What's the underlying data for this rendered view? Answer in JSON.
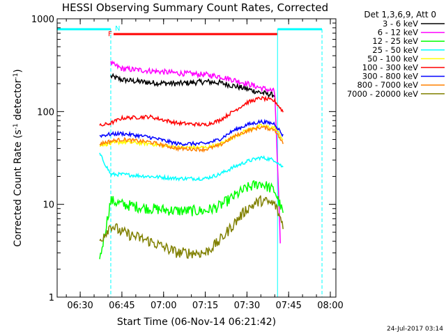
{
  "chart_data": {
    "type": "line",
    "title": "HESSI Observing Summary Count Rates, Corrected",
    "xlabel": "Start Time (06-Nov-14 06:21:42)",
    "ylabel_main": "Corrected Count Rate (s",
    "ylabel_sup1": "-1",
    "ylabel_mid": " detector",
    "ylabel_sup2": "-1",
    "ylabel_end": ")",
    "y_log": true,
    "ylim": [
      1,
      1000
    ],
    "xlim_minutes_after_0600": [
      21.7,
      122
    ],
    "x_ticks": [
      "06:30",
      "06:45",
      "07:00",
      "07:15",
      "07:30",
      "07:45",
      "08:00"
    ],
    "y_ticks": [
      "1",
      "10",
      "100",
      "1000"
    ],
    "footer_date": "24-Jul-2017 03:14",
    "legend_header": "Det 1,3,6,9, Att 0",
    "flags": {
      "F_label": "F",
      "N_label": "N",
      "flare_flag_range": [
        "06:42",
        "07:41"
      ],
      "night_flag_range_1": [
        "06:21:42",
        "06:41"
      ],
      "night_flag_range_2": [
        "07:41",
        "07:57"
      ]
    },
    "series": [
      {
        "name": "3 - 6 keV",
        "color": "#000000",
        "x": [
          "06:41",
          "06:45",
          "06:55",
          "07:05",
          "07:15",
          "07:20",
          "07:25",
          "07:30",
          "07:35",
          "07:40"
        ],
        "values": [
          240,
          220,
          205,
          200,
          210,
          205,
          190,
          175,
          160,
          150
        ]
      },
      {
        "name": "6 - 12 keV",
        "color": "#ff00ff",
        "x": [
          "06:41",
          "06:45",
          "06:55",
          "07:05",
          "07:15",
          "07:20",
          "07:25",
          "07:30",
          "07:35",
          "07:40",
          "07:42"
        ],
        "values": [
          330,
          290,
          275,
          260,
          250,
          240,
          220,
          200,
          180,
          165,
          4
        ]
      },
      {
        "name": "12 - 25 keV",
        "color": "#00ff00",
        "x": [
          "06:37",
          "06:41",
          "06:45",
          "06:55",
          "07:05",
          "07:15",
          "07:20",
          "07:25",
          "07:30",
          "07:35",
          "07:40",
          "07:43"
        ],
        "values": [
          2.5,
          11,
          10,
          9,
          8.5,
          8.5,
          9.5,
          12,
          15,
          17,
          14,
          8
        ]
      },
      {
        "name": "25 - 50 keV",
        "color": "#00ffff",
        "x": [
          "06:37",
          "06:41",
          "06:45",
          "06:55",
          "07:05",
          "07:15",
          "07:20",
          "07:25",
          "07:30",
          "07:35",
          "07:40",
          "07:43"
        ],
        "values": [
          35,
          21,
          21,
          20,
          19,
          19,
          21,
          25,
          29,
          32,
          30,
          25
        ]
      },
      {
        "name": "50 - 100 keV",
        "color": "#ffff00",
        "x": [
          "06:37",
          "06:41",
          "06:45",
          "06:55",
          "07:05",
          "07:15",
          "07:20",
          "07:25",
          "07:30",
          "07:35",
          "07:40",
          "07:43"
        ],
        "values": [
          44,
          45,
          47,
          45,
          41,
          41,
          44,
          53,
          63,
          70,
          67,
          50
        ]
      },
      {
        "name": "100 - 300 keV",
        "color": "#ff0000",
        "x": [
          "06:37",
          "06:41",
          "06:45",
          "06:55",
          "07:05",
          "07:15",
          "07:20",
          "07:25",
          "07:30",
          "07:35",
          "07:40",
          "07:43"
        ],
        "values": [
          70,
          75,
          85,
          88,
          75,
          72,
          80,
          100,
          125,
          140,
          130,
          100
        ]
      },
      {
        "name": "300 - 800 keV",
        "color": "#0000ff",
        "x": [
          "06:37",
          "06:41",
          "06:45",
          "06:55",
          "07:05",
          "07:15",
          "07:20",
          "07:25",
          "07:30",
          "07:35",
          "07:40",
          "07:43"
        ],
        "values": [
          55,
          57,
          58,
          53,
          45,
          45,
          50,
          62,
          72,
          78,
          74,
          55
        ]
      },
      {
        "name": "800 - 7000 keV",
        "color": "#ff8000",
        "x": [
          "06:37",
          "06:41",
          "06:45",
          "06:55",
          "07:05",
          "07:15",
          "07:20",
          "07:25",
          "07:30",
          "07:35",
          "07:40",
          "07:43"
        ],
        "values": [
          45,
          48,
          50,
          47,
          40,
          39,
          43,
          53,
          62,
          68,
          64,
          45
        ]
      },
      {
        "name": "7000 - 20000 keV",
        "color": "#808000",
        "x": [
          "06:37",
          "06:41",
          "06:45",
          "06:55",
          "07:05",
          "07:15",
          "07:20",
          "07:25",
          "07:30",
          "07:35",
          "07:40",
          "07:43"
        ],
        "values": [
          4,
          6,
          5,
          4,
          3,
          3,
          4,
          6,
          9,
          11,
          10,
          6
        ]
      }
    ],
    "flag_colors": {
      "flare": "#ff0000",
      "night": "#00ffff"
    }
  }
}
